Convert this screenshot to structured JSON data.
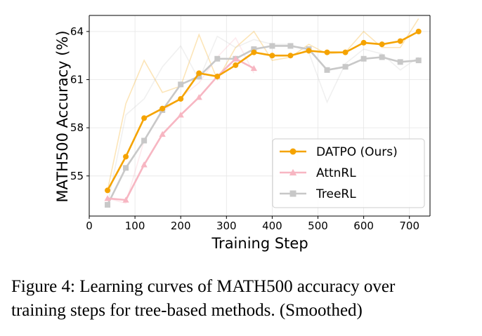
{
  "chart_data": {
    "type": "line",
    "xlabel": "Training Step",
    "ylabel": "MATH500 Accuracy (%)",
    "xlim": [
      0,
      745
    ],
    "ylim": [
      52.5,
      65.0
    ],
    "xticks": [
      0,
      100,
      200,
      300,
      400,
      500,
      600,
      700
    ],
    "yticks": [
      55,
      58,
      61,
      64
    ],
    "grid": true,
    "legend_position": "lower-right",
    "series": [
      {
        "name": "DATPO (Ours)",
        "color": "#f5a300",
        "marker": "circle",
        "x": [
          40,
          80,
          120,
          160,
          200,
          240,
          280,
          320,
          360,
          400,
          440,
          480,
          520,
          560,
          600,
          640,
          680,
          720
        ],
        "y": [
          54.1,
          56.2,
          58.6,
          59.2,
          59.8,
          61.4,
          61.2,
          61.9,
          62.7,
          62.5,
          62.5,
          62.8,
          62.7,
          62.7,
          63.3,
          63.2,
          63.4,
          64.0
        ],
        "raw_y": [
          54.1,
          59.5,
          62.2,
          60.2,
          60.6,
          63.8,
          61.0,
          63.0,
          64.0,
          62.2,
          62.4,
          63.2,
          62.6,
          62.7,
          64.0,
          63.0,
          63.0,
          64.8
        ]
      },
      {
        "name": "AttnRL",
        "color": "#f7b6c2",
        "marker": "triangle",
        "x": [
          40,
          80,
          120,
          160,
          200,
          240,
          280,
          320,
          360
        ],
        "y": [
          53.6,
          53.5,
          55.7,
          57.6,
          58.8,
          59.9,
          61.2,
          62.3,
          61.7
        ],
        "raw_y": [
          53.6,
          53.3,
          57.2,
          59.0,
          59.9,
          60.8,
          62.4,
          63.6,
          61.4
        ]
      },
      {
        "name": "TreeRL",
        "color": "#c8c8c8",
        "marker": "square",
        "x": [
          40,
          80,
          120,
          160,
          200,
          240,
          280,
          320,
          360,
          400,
          440,
          480,
          520,
          560,
          600,
          640,
          680,
          720
        ],
        "y": [
          53.2,
          55.5,
          57.2,
          59.1,
          60.7,
          61.2,
          62.3,
          62.3,
          62.9,
          63.1,
          63.1,
          62.9,
          61.6,
          61.8,
          62.3,
          62.4,
          62.1,
          62.2
        ],
        "raw_y": [
          53.2,
          58.8,
          59.8,
          61.8,
          63.1,
          61.0,
          63.7,
          63.0,
          63.5,
          63.2,
          63.2,
          62.7,
          59.6,
          62.0,
          62.9,
          62.6,
          61.6,
          62.4
        ]
      }
    ]
  },
  "caption": {
    "line1": "Figure 4: Learning curves of MATH500 accuracy over",
    "line2": "training steps for tree-based methods. (Smoothed)"
  }
}
